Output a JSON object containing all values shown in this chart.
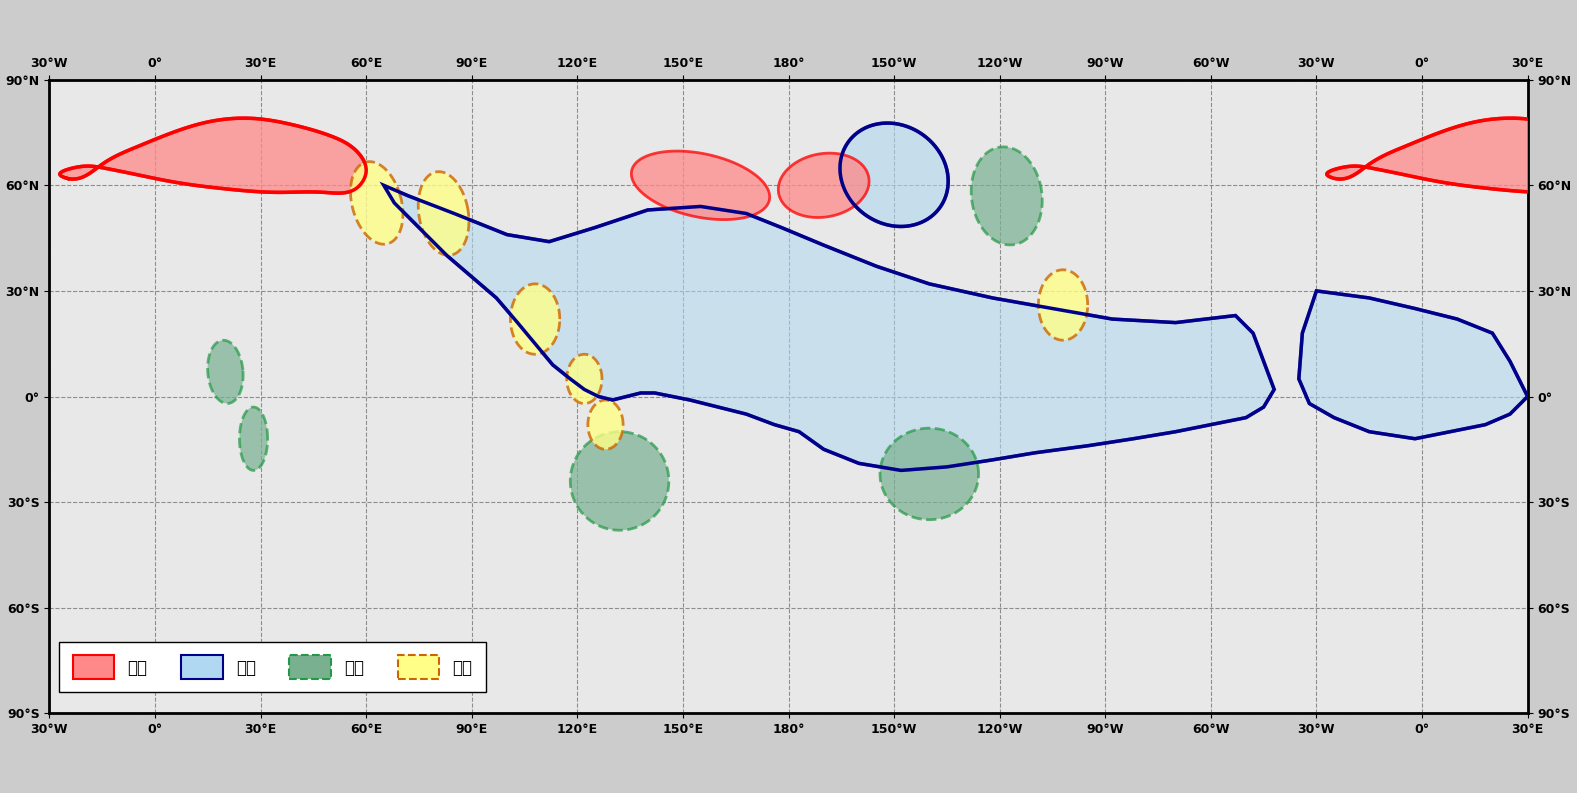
{
  "figsize": [
    15.77,
    7.93
  ],
  "dpi": 100,
  "fig_bg": "#cccccc",
  "map_bg": "#e8e8e8",
  "land_color": "#ffffff",
  "coast_color": "#000000",
  "border_color": "#888888",
  "grid_color": "#777777",
  "red_fill": "#ff8888",
  "red_edge": "#ff0000",
  "blue_fill": "#b0d8f0",
  "blue_edge": "#00008b",
  "green_fill": "#78b090",
  "green_edge": "#229944",
  "yellow_fill": "#ffff88",
  "yellow_edge": "#cc6600",
  "legend_items": [
    "高温",
    "低温",
    "多雨",
    "少雨"
  ],
  "lon_min": -30,
  "lon_max": 390,
  "lat_min": -90,
  "lat_max": 90,
  "xticks": [
    -30,
    0,
    30,
    60,
    90,
    120,
    150,
    180,
    210,
    240,
    270,
    300,
    330,
    360,
    390
  ],
  "yticks": [
    -90,
    -60,
    -30,
    0,
    30,
    60,
    90
  ],
  "xtick_labels": [
    "30°W",
    "0°",
    "30°E",
    "60°E",
    "90°E",
    "120°E",
    "150°E",
    "180°",
    "150°W",
    "120°W",
    "90°W",
    "60°W",
    "30°W",
    "0°",
    "30°E"
  ],
  "ytick_labels": [
    "90°S",
    "60°S",
    "30°S",
    "0°",
    "30°N",
    "60°N",
    "90°N"
  ]
}
